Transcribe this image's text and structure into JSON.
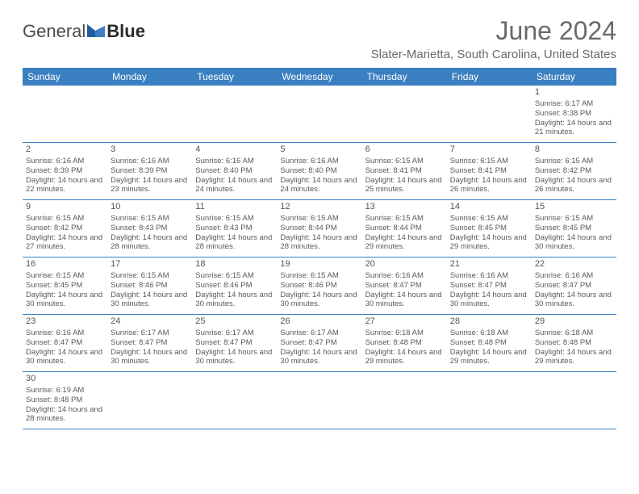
{
  "logo": {
    "text1": "General",
    "text2": "Blue"
  },
  "title": "June 2024",
  "location": "Slater-Marietta, South Carolina, United States",
  "colors": {
    "header_bg": "#3a7fc0",
    "header_text": "#ffffff",
    "text": "#5a5a5a",
    "divider": "#3a7fc0",
    "title_color": "#6a6a6a"
  },
  "weekdays": [
    "Sunday",
    "Monday",
    "Tuesday",
    "Wednesday",
    "Thursday",
    "Friday",
    "Saturday"
  ],
  "weeks": [
    [
      null,
      null,
      null,
      null,
      null,
      null,
      {
        "n": "1",
        "sunrise": "6:17 AM",
        "sunset": "8:38 PM",
        "daylight": "14 hours and 21 minutes."
      }
    ],
    [
      {
        "n": "2",
        "sunrise": "6:16 AM",
        "sunset": "8:39 PM",
        "daylight": "14 hours and 22 minutes."
      },
      {
        "n": "3",
        "sunrise": "6:16 AM",
        "sunset": "8:39 PM",
        "daylight": "14 hours and 23 minutes."
      },
      {
        "n": "4",
        "sunrise": "6:16 AM",
        "sunset": "8:40 PM",
        "daylight": "14 hours and 24 minutes."
      },
      {
        "n": "5",
        "sunrise": "6:16 AM",
        "sunset": "8:40 PM",
        "daylight": "14 hours and 24 minutes."
      },
      {
        "n": "6",
        "sunrise": "6:15 AM",
        "sunset": "8:41 PM",
        "daylight": "14 hours and 25 minutes."
      },
      {
        "n": "7",
        "sunrise": "6:15 AM",
        "sunset": "8:41 PM",
        "daylight": "14 hours and 26 minutes."
      },
      {
        "n": "8",
        "sunrise": "6:15 AM",
        "sunset": "8:42 PM",
        "daylight": "14 hours and 26 minutes."
      }
    ],
    [
      {
        "n": "9",
        "sunrise": "6:15 AM",
        "sunset": "8:42 PM",
        "daylight": "14 hours and 27 minutes."
      },
      {
        "n": "10",
        "sunrise": "6:15 AM",
        "sunset": "8:43 PM",
        "daylight": "14 hours and 28 minutes."
      },
      {
        "n": "11",
        "sunrise": "6:15 AM",
        "sunset": "8:43 PM",
        "daylight": "14 hours and 28 minutes."
      },
      {
        "n": "12",
        "sunrise": "6:15 AM",
        "sunset": "8:44 PM",
        "daylight": "14 hours and 28 minutes."
      },
      {
        "n": "13",
        "sunrise": "6:15 AM",
        "sunset": "8:44 PM",
        "daylight": "14 hours and 29 minutes."
      },
      {
        "n": "14",
        "sunrise": "6:15 AM",
        "sunset": "8:45 PM",
        "daylight": "14 hours and 29 minutes."
      },
      {
        "n": "15",
        "sunrise": "6:15 AM",
        "sunset": "8:45 PM",
        "daylight": "14 hours and 30 minutes."
      }
    ],
    [
      {
        "n": "16",
        "sunrise": "6:15 AM",
        "sunset": "8:45 PM",
        "daylight": "14 hours and 30 minutes."
      },
      {
        "n": "17",
        "sunrise": "6:15 AM",
        "sunset": "8:46 PM",
        "daylight": "14 hours and 30 minutes."
      },
      {
        "n": "18",
        "sunrise": "6:15 AM",
        "sunset": "8:46 PM",
        "daylight": "14 hours and 30 minutes."
      },
      {
        "n": "19",
        "sunrise": "6:15 AM",
        "sunset": "8:46 PM",
        "daylight": "14 hours and 30 minutes."
      },
      {
        "n": "20",
        "sunrise": "6:16 AM",
        "sunset": "8:47 PM",
        "daylight": "14 hours and 30 minutes."
      },
      {
        "n": "21",
        "sunrise": "6:16 AM",
        "sunset": "8:47 PM",
        "daylight": "14 hours and 30 minutes."
      },
      {
        "n": "22",
        "sunrise": "6:16 AM",
        "sunset": "8:47 PM",
        "daylight": "14 hours and 30 minutes."
      }
    ],
    [
      {
        "n": "23",
        "sunrise": "6:16 AM",
        "sunset": "8:47 PM",
        "daylight": "14 hours and 30 minutes."
      },
      {
        "n": "24",
        "sunrise": "6:17 AM",
        "sunset": "8:47 PM",
        "daylight": "14 hours and 30 minutes."
      },
      {
        "n": "25",
        "sunrise": "6:17 AM",
        "sunset": "8:47 PM",
        "daylight": "14 hours and 30 minutes."
      },
      {
        "n": "26",
        "sunrise": "6:17 AM",
        "sunset": "8:47 PM",
        "daylight": "14 hours and 30 minutes."
      },
      {
        "n": "27",
        "sunrise": "6:18 AM",
        "sunset": "8:48 PM",
        "daylight": "14 hours and 29 minutes."
      },
      {
        "n": "28",
        "sunrise": "6:18 AM",
        "sunset": "8:48 PM",
        "daylight": "14 hours and 29 minutes."
      },
      {
        "n": "29",
        "sunrise": "6:18 AM",
        "sunset": "8:48 PM",
        "daylight": "14 hours and 29 minutes."
      }
    ],
    [
      {
        "n": "30",
        "sunrise": "6:19 AM",
        "sunset": "8:48 PM",
        "daylight": "14 hours and 28 minutes."
      },
      null,
      null,
      null,
      null,
      null,
      null
    ]
  ],
  "labels": {
    "sunrise": "Sunrise:",
    "sunset": "Sunset:",
    "daylight": "Daylight:"
  }
}
